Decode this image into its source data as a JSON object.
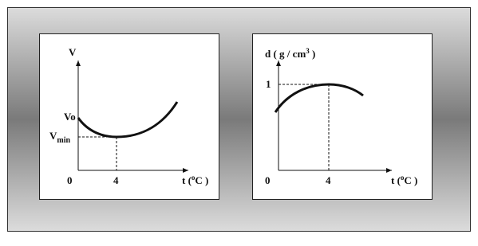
{
  "left_graph": {
    "y_axis_label": "V",
    "v0_label": "Vo",
    "vmin_label": {
      "main": "V",
      "sub": "min"
    },
    "origin_label": "0",
    "x_tick_label": "4",
    "x_axis_label": {
      "before": "t (",
      "sup": "o",
      "after": "C )"
    }
  },
  "right_graph": {
    "y_axis_label": {
      "before": "d ( g / cm",
      "sup": "3",
      "after": " )"
    },
    "y_tick_label": "1",
    "origin_label": "0",
    "x_tick_label": "4",
    "x_axis_label": {
      "before": "t (",
      "sup": "o",
      "after": "C )"
    }
  }
}
